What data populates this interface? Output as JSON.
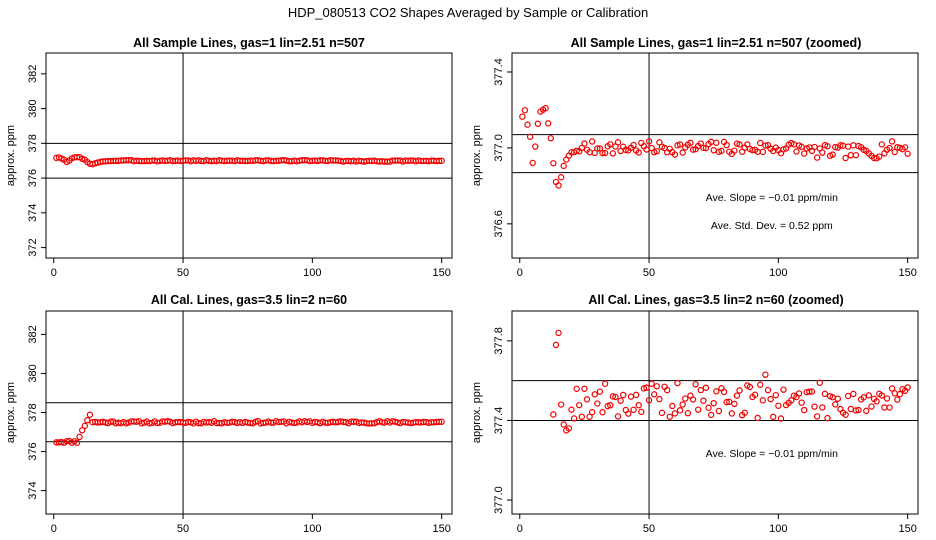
{
  "main_title": "HDP_080513  CO2 Shapes Averaged by Sample or Calibration",
  "chart_data": [
    {
      "type": "scatter",
      "title": "All Sample Lines, gas=1 lin=2.51 n=507",
      "ylabel": "approx. ppm",
      "xlim": [
        -3,
        154
      ],
      "ylim": [
        371.4,
        383.2
      ],
      "x_ticks": [
        0,
        50,
        100,
        150
      ],
      "y_ticks": [
        372,
        374,
        376,
        378,
        380,
        382
      ],
      "hlines": [
        378,
        376
      ],
      "vline": 50,
      "marker_color": "#ee0000",
      "seed": 3,
      "pattern": "sample",
      "scale": 1.0,
      "annotations": []
    },
    {
      "type": "scatter",
      "title": "All Sample Lines, gas=1 lin=2.51 n=507 (zoomed)",
      "ylabel": "approx. ppm",
      "xlim": [
        -3,
        154
      ],
      "ylim": [
        376.42,
        377.5
      ],
      "x_ticks": [
        0,
        50,
        100,
        150
      ],
      "y_ticks": [
        376.6,
        377.0,
        377.4
      ],
      "hlines": [
        377.07,
        376.87
      ],
      "vline": 50,
      "marker_color": "#ee0000",
      "seed": 7,
      "pattern": "sample",
      "scale": 1.0,
      "annotations": [
        "Ave. Slope =  −0.01  ppm/min",
        "Ave. Std. Dev. =  0.52  ppm"
      ]
    },
    {
      "type": "scatter",
      "title": "All Cal. Lines, gas=3.5 lin=2 n=60",
      "ylabel": "approx. ppm",
      "xlim": [
        -3,
        154
      ],
      "ylim": [
        372.8,
        383.2
      ],
      "x_ticks": [
        0,
        50,
        100,
        150
      ],
      "y_ticks": [
        374,
        376,
        378,
        380,
        382
      ],
      "hlines": [
        378.5,
        376.5
      ],
      "vline": 50,
      "marker_color": "#ee0000",
      "seed": 11,
      "pattern": "cal",
      "scale": 1.0,
      "annotations": []
    },
    {
      "type": "scatter",
      "title": "All Cal. Lines, gas=3.5 lin=2 n=60 (zoomed)",
      "ylabel": "approx. ppm",
      "xlim": [
        -3,
        154
      ],
      "ylim": [
        376.93,
        377.95
      ],
      "x_ticks": [
        0,
        50,
        100,
        150
      ],
      "y_ticks": [
        377.0,
        377.4,
        377.8
      ],
      "hlines": [
        377.6,
        377.4
      ],
      "vline": 50,
      "marker_color": "#ee0000",
      "seed": 19,
      "pattern": "calzoom",
      "scale": 1.0,
      "annotations": [
        "Ave. Slope =  −0.01  ppm/min"
      ]
    }
  ]
}
